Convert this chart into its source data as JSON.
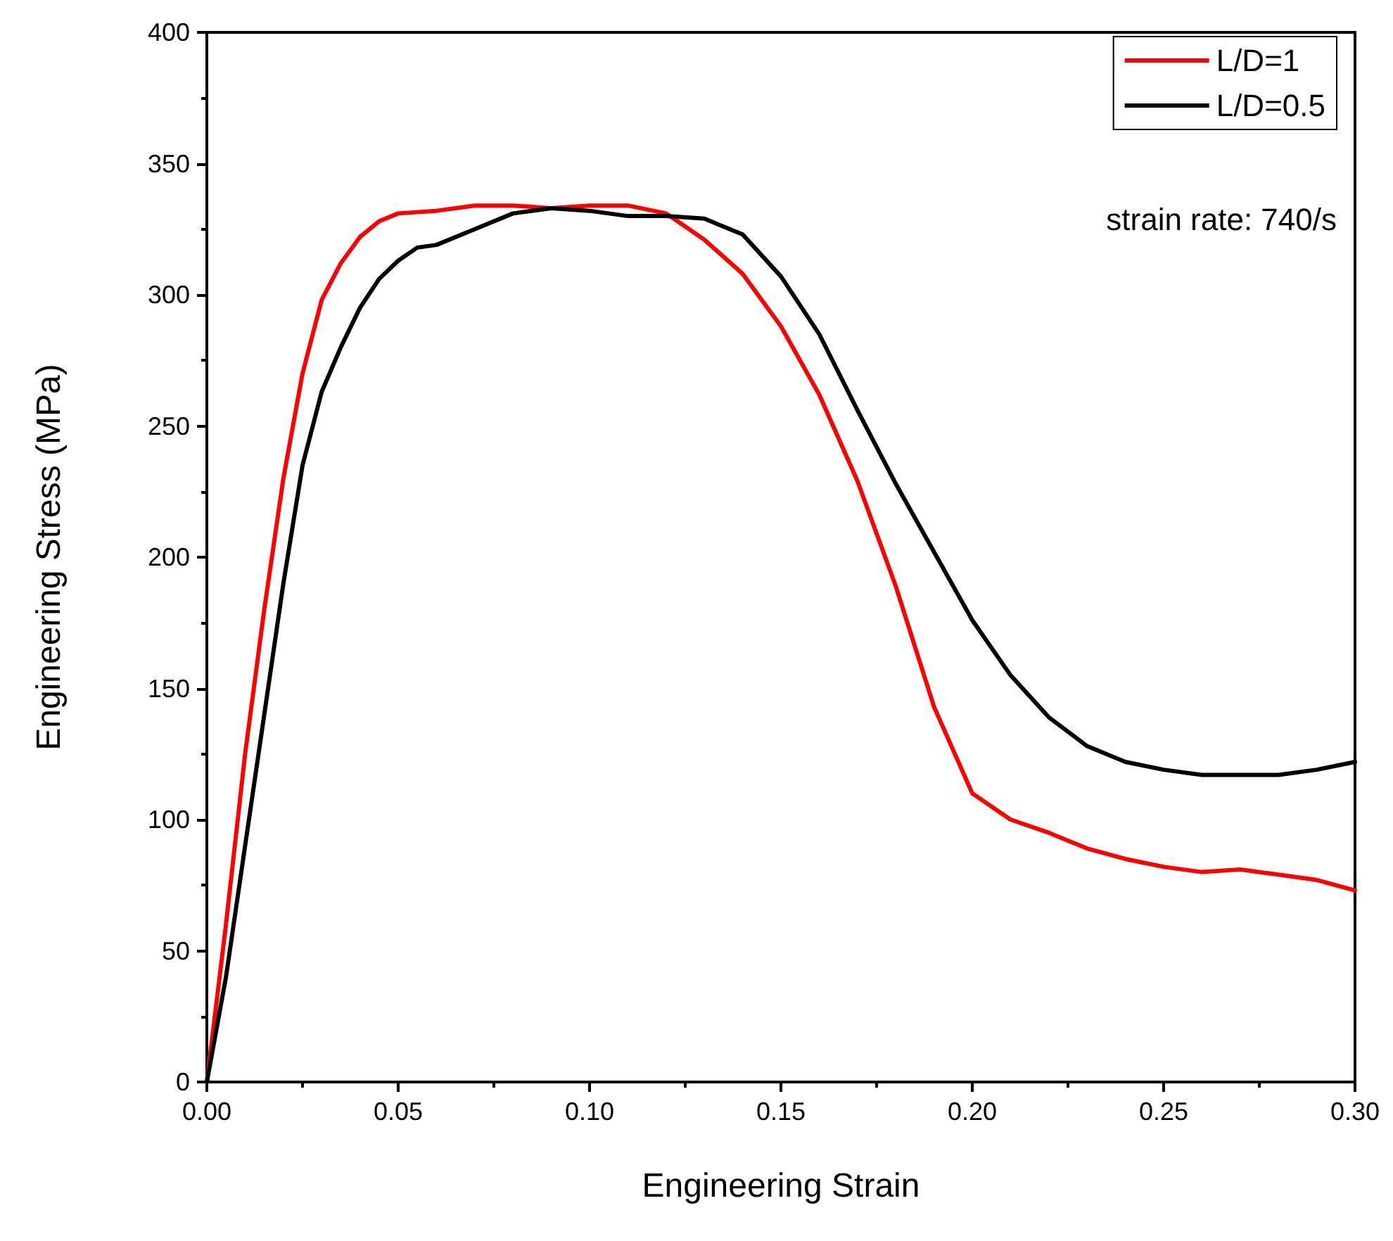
{
  "chart_data": {
    "type": "line",
    "xlabel": "Engineering Strain",
    "ylabel": "Engineering Stress (MPa)",
    "annotations": [
      "strain rate: 740/s"
    ],
    "xlim": [
      0,
      0.3
    ],
    "ylim": [
      0,
      400
    ],
    "xticks": [
      {
        "value": 0,
        "label": "0.00"
      },
      {
        "value": 0.05,
        "label": "0.05"
      },
      {
        "value": 0.1,
        "label": "0.10"
      },
      {
        "value": 0.15,
        "label": "0.15"
      },
      {
        "value": 0.2,
        "label": "0.20"
      },
      {
        "value": 0.25,
        "label": "0.25"
      },
      {
        "value": 0.3,
        "label": "0.30"
      }
    ],
    "yticks": [
      0,
      50,
      100,
      150,
      200,
      250,
      300,
      350,
      400
    ],
    "grid": false,
    "legend": "top right",
    "marker": "none",
    "line_style": "solid",
    "series": [
      {
        "name": "L/D=1",
        "color": "#ff0000",
        "x": [
          0,
          0.005,
          0.01,
          0.015,
          0.02,
          0.025,
          0.03,
          0.035,
          0.04,
          0.045,
          0.05,
          0.06,
          0.07,
          0.08,
          0.09,
          0.1,
          0.11,
          0.12,
          0.125,
          0.13,
          0.14,
          0.15,
          0.16,
          0.17,
          0.18,
          0.19,
          0.2,
          0.21,
          0.22,
          0.23,
          0.24,
          0.25,
          0.26,
          0.27,
          0.28,
          0.29,
          0.3
        ],
        "values": [
          0,
          60,
          125,
          180,
          230,
          270,
          298,
          312,
          322,
          328,
          331,
          332,
          334,
          334,
          333,
          334,
          334,
          331,
          326,
          321,
          308,
          288,
          262,
          229,
          189,
          143,
          110,
          100,
          95,
          89,
          85,
          82,
          80,
          81,
          79,
          77,
          73
        ]
      },
      {
        "name": "L/D=0.5",
        "color": "#000000",
        "x": [
          0,
          0.005,
          0.01,
          0.015,
          0.02,
          0.025,
          0.03,
          0.035,
          0.04,
          0.045,
          0.05,
          0.055,
          0.06,
          0.07,
          0.08,
          0.09,
          0.1,
          0.11,
          0.12,
          0.13,
          0.14,
          0.15,
          0.16,
          0.17,
          0.18,
          0.19,
          0.2,
          0.21,
          0.22,
          0.23,
          0.24,
          0.25,
          0.26,
          0.27,
          0.28,
          0.29,
          0.3
        ],
        "values": [
          0,
          40,
          90,
          140,
          190,
          235,
          263,
          280,
          295,
          306,
          313,
          318,
          319,
          325,
          331,
          333,
          332,
          330,
          330,
          329,
          323,
          307,
          285,
          256,
          228,
          202,
          176,
          155,
          139,
          128,
          122,
          119,
          117,
          117,
          117,
          119,
          122
        ]
      }
    ]
  }
}
